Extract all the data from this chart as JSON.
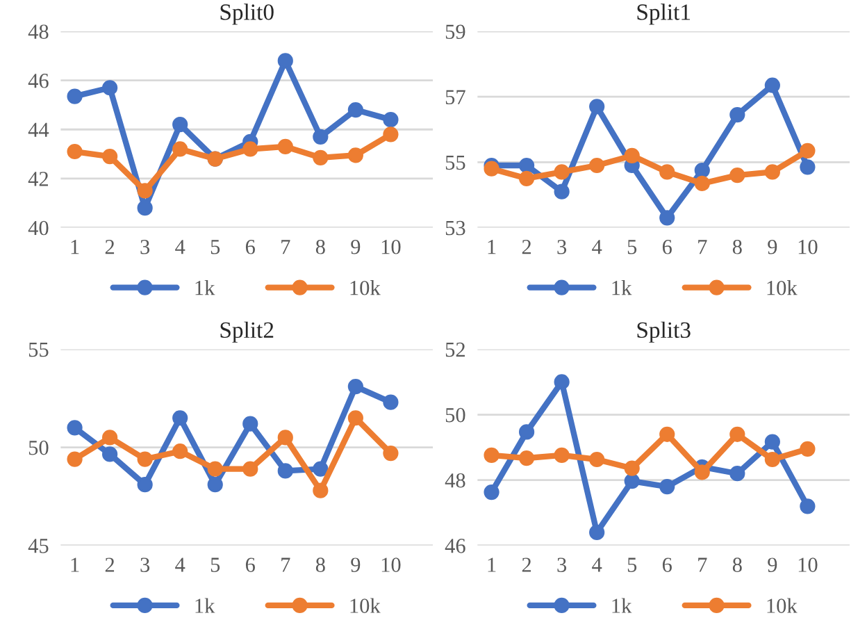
{
  "chart_data": [
    {
      "type": "line",
      "title": "Split0",
      "categories": [
        "1",
        "2",
        "3",
        "4",
        "5",
        "6",
        "7",
        "8",
        "9",
        "10"
      ],
      "ylim": [
        40,
        48
      ],
      "yticks": [
        40,
        42,
        44,
        46,
        48
      ],
      "grid": "y",
      "legend": "bottom",
      "marker": "circle",
      "line_style": "solid",
      "series": [
        {
          "name": "1k",
          "color": "#4472c4",
          "values": [
            45.35,
            45.7,
            40.8,
            44.2,
            42.8,
            43.5,
            46.8,
            43.7,
            44.8,
            44.4
          ]
        },
        {
          "name": "10k",
          "color": "#ed7d31",
          "values": [
            43.1,
            42.9,
            41.5,
            43.2,
            42.8,
            43.2,
            43.3,
            42.85,
            42.95,
            43.8
          ]
        }
      ]
    },
    {
      "type": "line",
      "title": "Split1",
      "categories": [
        "1",
        "2",
        "3",
        "4",
        "5",
        "6",
        "7",
        "8",
        "9",
        "10"
      ],
      "ylim": [
        53,
        59
      ],
      "yticks": [
        53,
        55,
        57,
        59
      ],
      "grid": "y",
      "legend": "bottom",
      "marker": "circle",
      "line_style": "solid",
      "series": [
        {
          "name": "1k",
          "color": "#4472c4",
          "values": [
            54.9,
            54.9,
            54.1,
            56.7,
            54.9,
            53.3,
            54.75,
            56.45,
            57.35,
            54.85
          ]
        },
        {
          "name": "10k",
          "color": "#ed7d31",
          "values": [
            54.8,
            54.5,
            54.7,
            54.9,
            55.2,
            54.7,
            54.35,
            54.6,
            54.7,
            55.35
          ]
        }
      ]
    },
    {
      "type": "line",
      "title": "Split2",
      "categories": [
        "1",
        "2",
        "3",
        "4",
        "5",
        "6",
        "7",
        "8",
        "9",
        "10"
      ],
      "ylim": [
        45,
        55
      ],
      "yticks": [
        45,
        50,
        55
      ],
      "grid": "y",
      "legend": "bottom",
      "marker": "circle",
      "line_style": "solid",
      "series": [
        {
          "name": "1k",
          "color": "#4472c4",
          "values": [
            51.0,
            49.65,
            48.1,
            51.5,
            48.1,
            51.2,
            48.8,
            48.9,
            53.1,
            52.3
          ]
        },
        {
          "name": "10k",
          "color": "#ed7d31",
          "values": [
            49.4,
            50.5,
            49.4,
            49.8,
            48.9,
            48.9,
            50.5,
            47.8,
            51.5,
            49.7
          ]
        }
      ]
    },
    {
      "type": "line",
      "title": "Split3",
      "categories": [
        "1",
        "2",
        "3",
        "4",
        "5",
        "6",
        "7",
        "8",
        "9",
        "10"
      ],
      "ylim": [
        46,
        52
      ],
      "yticks": [
        46,
        48,
        50,
        52
      ],
      "grid": "y",
      "legend": "bottom",
      "marker": "circle",
      "line_style": "solid",
      "series": [
        {
          "name": "1k",
          "color": "#4472c4",
          "values": [
            47.63,
            49.47,
            51.0,
            46.4,
            47.97,
            47.8,
            48.4,
            48.2,
            49.17,
            47.2
          ]
        },
        {
          "name": "10k",
          "color": "#ed7d31",
          "values": [
            48.76,
            48.67,
            48.76,
            48.63,
            48.36,
            49.4,
            48.24,
            49.4,
            48.63,
            48.95
          ]
        }
      ]
    }
  ]
}
